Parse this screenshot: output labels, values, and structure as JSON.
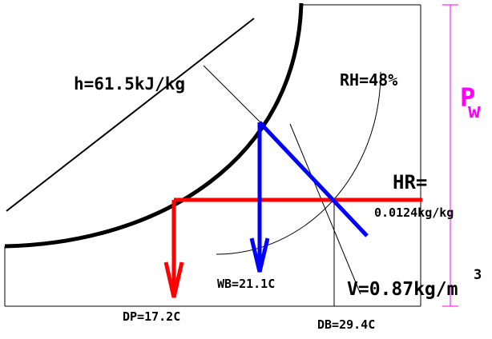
{
  "labels": {
    "enthalpy": "h=61.5kJ/kg",
    "relative_humidity": "RH=48%",
    "humidity_ratio_title": "HR=",
    "humidity_ratio_value": "0.0124kg/kg",
    "wet_bulb": "WB=21.1C",
    "dew_point": "DP=17.2C",
    "dry_bulb": "DB=29.4C",
    "specific_volume": "V=0.87kg/m",
    "specific_volume_exp": "3",
    "vapor_pressure_main": "P",
    "vapor_pressure_sub": "w"
  },
  "colors": {
    "axes": "#000000",
    "saturation_curve": "#000000",
    "humidity_ratio_line": "#ff0000",
    "dew_point_arrow": "#ff0000",
    "wet_bulb_line": "#0000ff",
    "wet_bulb_arrow": "#0000ff",
    "vapor_pressure": "#ff00ff"
  }
}
